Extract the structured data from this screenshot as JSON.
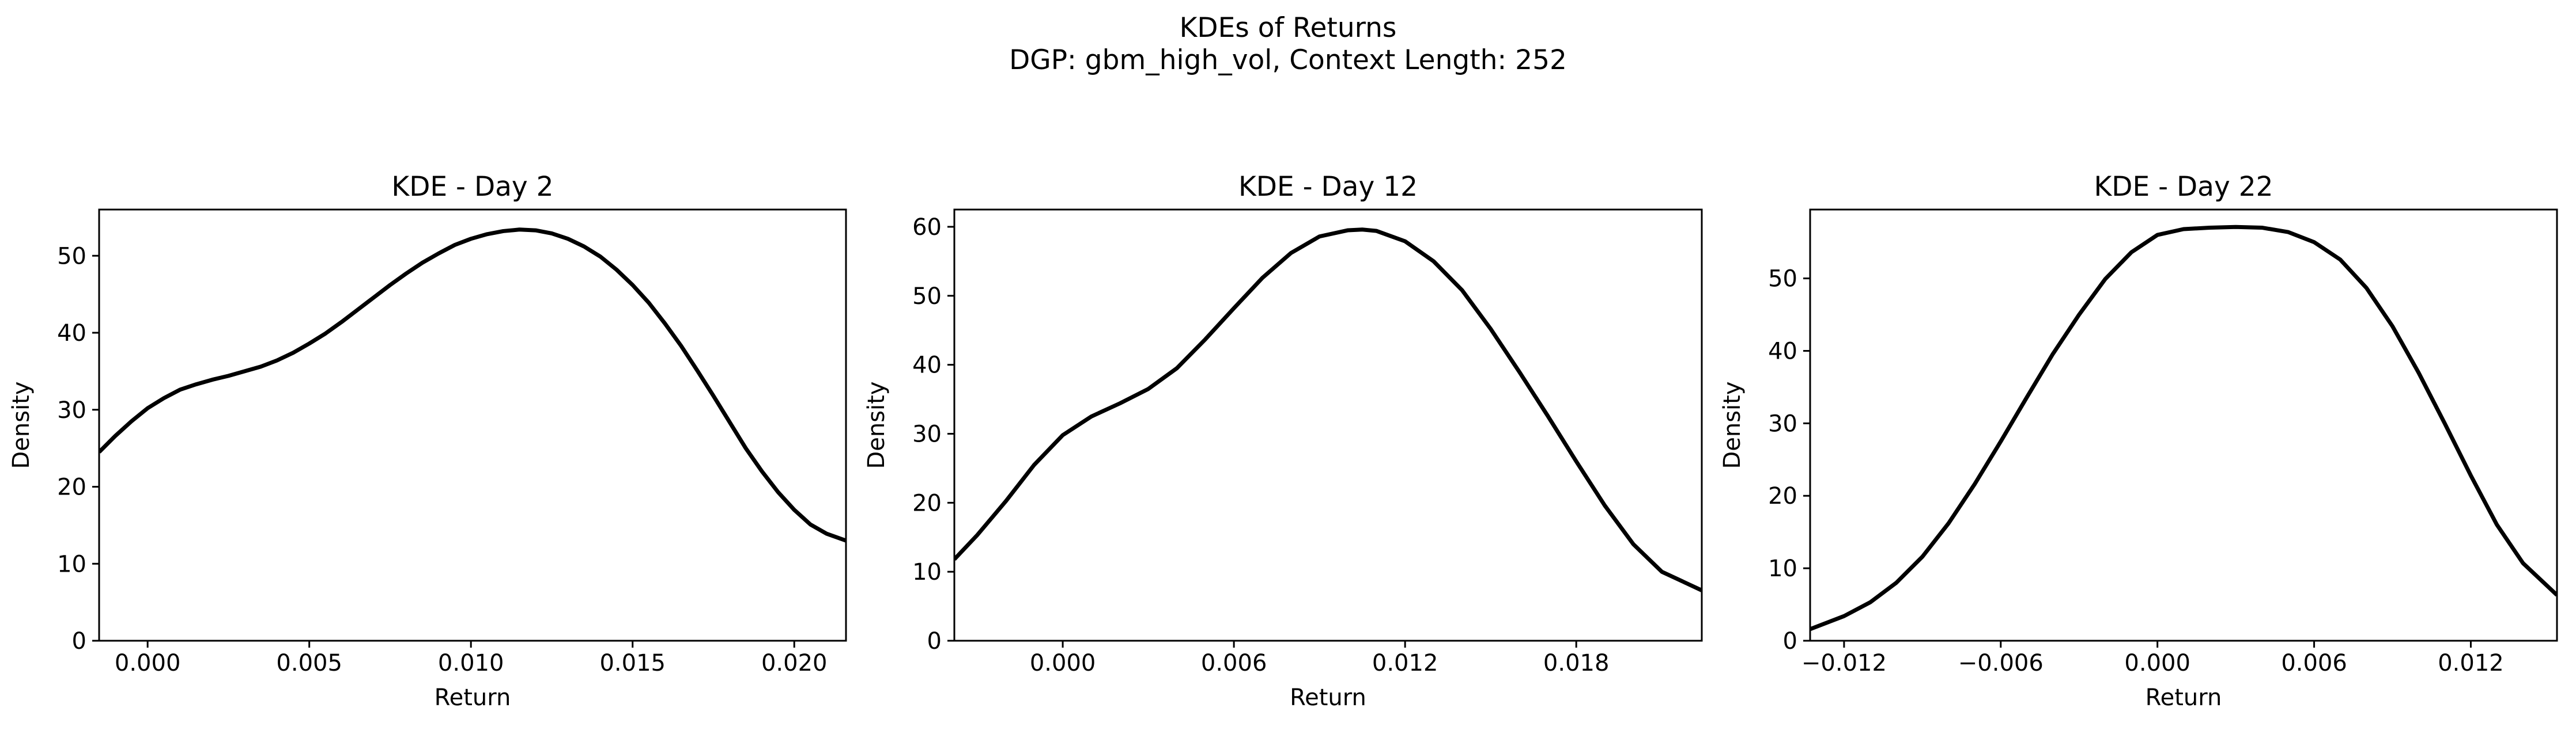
{
  "figure": {
    "title": "KDEs of Returns",
    "subtitle": "DGP: gbm_high_vol, Context Length: 252"
  },
  "chart_data": [
    {
      "type": "line",
      "title": "KDE - Day 2",
      "xlabel": "Return",
      "ylabel": "Density",
      "xlim": [
        -0.0015,
        0.0216
      ],
      "ylim": [
        0,
        56
      ],
      "xticks": [
        0.0,
        0.005,
        0.01,
        0.015,
        0.02
      ],
      "xtick_labels": [
        "0.000",
        "0.005",
        "0.010",
        "0.015",
        "0.020"
      ],
      "yticks": [
        0,
        10,
        20,
        30,
        40,
        50
      ],
      "ytick_labels": [
        "0",
        "10",
        "20",
        "30",
        "40",
        "50"
      ],
      "grid": false,
      "color": "#000000",
      "series": [
        {
          "x": [
            -0.0015,
            -0.001,
            -0.0005,
            0.0,
            0.0005,
            0.001,
            0.0015,
            0.002,
            0.0025,
            0.003,
            0.0035,
            0.004,
            0.0045,
            0.005,
            0.0055,
            0.006,
            0.0065,
            0.007,
            0.0075,
            0.008,
            0.0085,
            0.009,
            0.0095,
            0.01,
            0.0105,
            0.011,
            0.0115,
            0.012,
            0.0125,
            0.013,
            0.0135,
            0.014,
            0.0145,
            0.015,
            0.0155,
            0.016,
            0.0165,
            0.017,
            0.0175,
            0.018,
            0.0185,
            0.019,
            0.0195,
            0.02,
            0.0205,
            0.021,
            0.0216
          ],
          "y": [
            24.5,
            26.6,
            28.5,
            30.2,
            31.5,
            32.6,
            33.3,
            33.9,
            34.4,
            35.0,
            35.6,
            36.4,
            37.4,
            38.6,
            39.9,
            41.4,
            43.0,
            44.6,
            46.2,
            47.7,
            49.1,
            50.3,
            51.4,
            52.2,
            52.8,
            53.2,
            53.4,
            53.3,
            52.9,
            52.2,
            51.2,
            49.9,
            48.2,
            46.2,
            43.9,
            41.2,
            38.3,
            35.1,
            31.8,
            28.4,
            25.0,
            22.0,
            19.3,
            17.0,
            15.1,
            13.9,
            13.0
          ]
        }
      ]
    },
    {
      "type": "line",
      "title": "KDE - Day 12",
      "xlabel": "Return",
      "ylabel": "Density",
      "xlim": [
        -0.0038,
        0.0224
      ],
      "ylim": [
        0,
        62.5
      ],
      "xticks": [
        0.0,
        0.006,
        0.012,
        0.018
      ],
      "xtick_labels": [
        "0.000",
        "0.006",
        "0.012",
        "0.018"
      ],
      "yticks": [
        0,
        10,
        20,
        30,
        40,
        50,
        60
      ],
      "ytick_labels": [
        "0",
        "10",
        "20",
        "30",
        "40",
        "50",
        "60"
      ],
      "grid": false,
      "color": "#000000",
      "series": [
        {
          "x": [
            -0.0038,
            -0.003,
            -0.002,
            -0.001,
            0.0,
            0.001,
            0.002,
            0.003,
            0.004,
            0.005,
            0.006,
            0.007,
            0.008,
            0.009,
            0.01,
            0.0105,
            0.011,
            0.012,
            0.013,
            0.014,
            0.015,
            0.016,
            0.017,
            0.018,
            0.019,
            0.02,
            0.021,
            0.0224
          ],
          "y": [
            11.8,
            15.3,
            20.2,
            25.5,
            29.8,
            32.5,
            34.4,
            36.5,
            39.5,
            43.7,
            48.2,
            52.6,
            56.2,
            58.6,
            59.5,
            59.6,
            59.4,
            57.9,
            55.0,
            50.8,
            45.2,
            39.0,
            32.6,
            26.0,
            19.6,
            14.0,
            10.0,
            7.3
          ]
        }
      ]
    },
    {
      "type": "line",
      "title": "KDE - Day 22",
      "xlabel": "Return",
      "ylabel": "Density",
      "xlim": [
        -0.0133,
        0.0153
      ],
      "ylim": [
        0,
        59.5
      ],
      "xticks": [
        -0.012,
        -0.006,
        0.0,
        0.006,
        0.012
      ],
      "xtick_labels": [
        "−0.012",
        "−0.006",
        "0.000",
        "0.006",
        "0.012"
      ],
      "yticks": [
        0,
        10,
        20,
        30,
        40,
        50
      ],
      "ytick_labels": [
        "0",
        "10",
        "20",
        "30",
        "40",
        "50"
      ],
      "grid": false,
      "color": "#000000",
      "series": [
        {
          "x": [
            -0.0133,
            -0.012,
            -0.011,
            -0.01,
            -0.009,
            -0.008,
            -0.007,
            -0.006,
            -0.005,
            -0.004,
            -0.003,
            -0.002,
            -0.001,
            0.0,
            0.001,
            0.002,
            0.003,
            0.004,
            0.005,
            0.006,
            0.007,
            0.008,
            0.009,
            0.01,
            0.011,
            0.012,
            0.013,
            0.014,
            0.0153
          ],
          "y": [
            1.6,
            3.4,
            5.3,
            8.0,
            11.6,
            16.2,
            21.6,
            27.5,
            33.6,
            39.6,
            45.0,
            49.9,
            53.6,
            56.0,
            56.8,
            57.0,
            57.1,
            57.0,
            56.4,
            55.0,
            52.6,
            48.7,
            43.4,
            37.0,
            30.0,
            22.8,
            16.0,
            10.7,
            6.3
          ]
        }
      ]
    }
  ]
}
